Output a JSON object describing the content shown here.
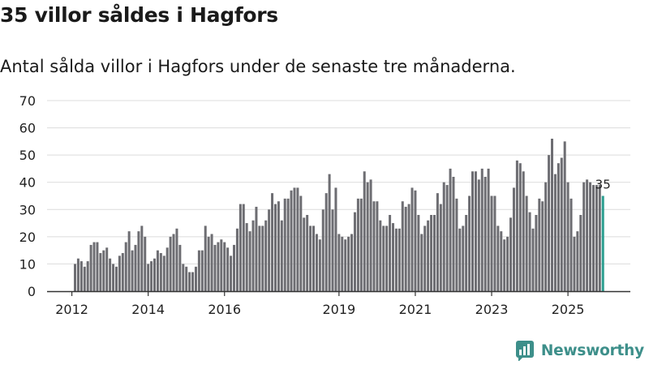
{
  "title": "35 villor såldes i Hagfors",
  "subtitle": "Antal sålda villor i Hagfors under de senaste tre månaderna.",
  "brand": "Newsworthy",
  "colors": {
    "bar": "#6d6d72",
    "highlight": "#2a9d8f",
    "brand": "#3d8f8a",
    "grid": "#dcdcdc",
    "text": "#222222"
  },
  "chart_data": {
    "type": "bar",
    "title": "35 villor såldes i Hagfors",
    "xlabel": "",
    "ylabel": "",
    "ylim": [
      0,
      70
    ],
    "yticks": [
      0,
      10,
      20,
      30,
      40,
      50,
      60,
      70
    ],
    "grid": true,
    "start_month": "2012-02",
    "x_tick_labels": [
      {
        "label": "2012",
        "month": "2012-01"
      },
      {
        "label": "2014",
        "month": "2014-01"
      },
      {
        "label": "2016",
        "month": "2016-01"
      },
      {
        "label": "2019",
        "month": "2019-01"
      },
      {
        "label": "2021",
        "month": "2021-01"
      },
      {
        "label": "2023",
        "month": "2023-01"
      },
      {
        "label": "2025",
        "month": "2025-01"
      }
    ],
    "values": [
      10,
      12,
      11,
      9,
      11,
      17,
      18,
      18,
      14,
      15,
      16,
      12,
      10,
      9,
      13,
      14,
      18,
      22,
      15,
      17,
      22,
      24,
      20,
      10,
      11,
      12,
      15,
      14,
      13,
      16,
      20,
      21,
      23,
      17,
      10,
      9,
      7,
      7,
      9,
      15,
      15,
      24,
      20,
      21,
      17,
      18,
      19,
      18,
      16,
      13,
      17,
      23,
      32,
      32,
      25,
      22,
      26,
      31,
      24,
      24,
      26,
      30,
      36,
      32,
      33,
      26,
      34,
      34,
      37,
      38,
      38,
      35,
      27,
      28,
      24,
      24,
      21,
      19,
      30,
      36,
      43,
      30,
      38,
      21,
      20,
      19,
      20,
      21,
      29,
      34,
      34,
      44,
      40,
      41,
      33,
      33,
      26,
      24,
      24,
      28,
      25,
      23,
      23,
      33,
      31,
      32,
      38,
      37,
      28,
      21,
      24,
      26,
      28,
      28,
      36,
      32,
      40,
      39,
      45,
      42,
      34,
      23,
      24,
      28,
      35,
      44,
      44,
      41,
      45,
      42,
      45,
      35,
      35,
      24,
      22,
      19,
      20,
      27,
      38,
      48,
      47,
      44,
      35,
      29,
      23,
      28,
      34,
      33,
      40,
      50,
      56,
      43,
      47,
      49,
      55,
      40,
      34,
      20,
      22,
      28,
      40,
      41,
      40,
      39,
      39,
      39,
      35
    ],
    "highlight_index": 166,
    "highlight_label": "35"
  }
}
